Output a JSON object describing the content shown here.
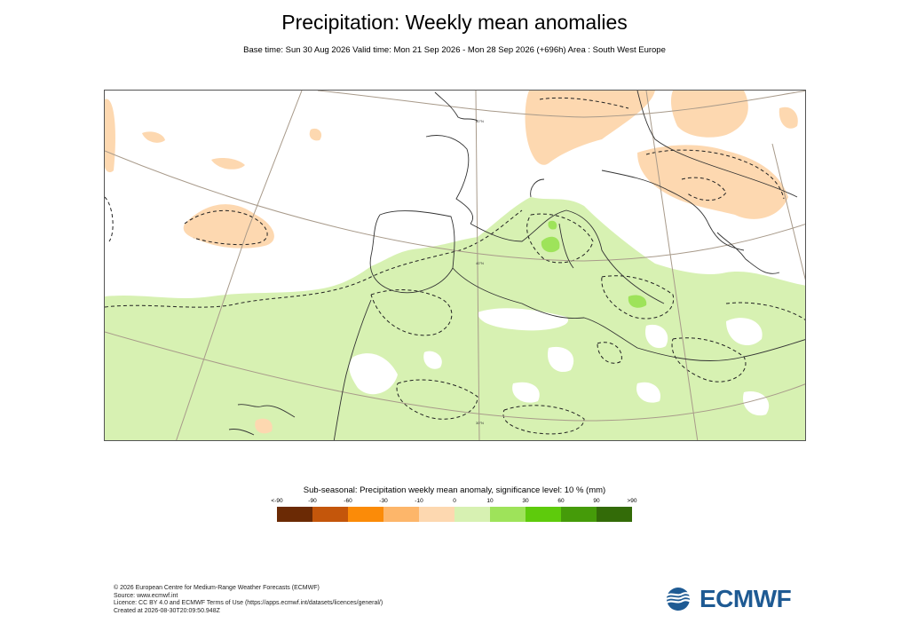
{
  "header": {
    "title": "Precipitation: Weekly mean anomalies",
    "subtitle": "Base time: Sun 30 Aug 2026 Valid time: Mon 21 Sep 2026 - Mon 28 Sep 2026 (+696h) Area : South West Europe"
  },
  "map": {
    "graticule_labels": [
      "50°N",
      "40°N",
      "30°N"
    ]
  },
  "legend": {
    "title": "Sub-seasonal: Precipitation weekly mean anomaly, significance level: 10 % (mm)",
    "labels": [
      "<-90",
      "-90",
      "-60",
      "-30",
      "-10",
      "0",
      "10",
      "30",
      "60",
      "90",
      ">90"
    ],
    "colors": [
      "#6b2a05",
      "#c4560b",
      "#fb8b08",
      "#fdb66a",
      "#fdd8b0",
      "#d7f1b2",
      "#9ee35a",
      "#5ecb0c",
      "#459b09",
      "#336b08"
    ]
  },
  "footer": {
    "copyright": "© 2026 European Centre for Medium-Range Weather Forecasts (ECMWF)",
    "source": "Source: www.ecmwf.int",
    "licence": "Licence: CC BY 4.0 and ECMWF Terms of Use (https://apps.ecmwf.int/datasets/licences/general/)",
    "created": "Created at 2026-08-30T20:09:50.948Z"
  },
  "logo": {
    "text": "ECMWF",
    "color": "#1e5a93"
  }
}
